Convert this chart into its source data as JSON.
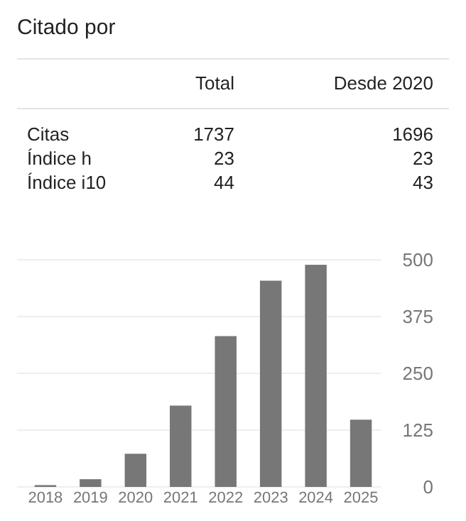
{
  "chart_data": [
    {
      "type": "other",
      "title": "Citado por",
      "categories": [
        "Total",
        "Desde 2020"
      ],
      "y_categories": [
        "Citas",
        "Índice h",
        "Índice i10"
      ],
      "annotations": [
        "1737",
        "1696",
        "23",
        "23",
        "44",
        "43"
      ]
    },
    {
      "type": "bar",
      "categories": [
        "2018",
        "2019",
        "2020",
        "2021",
        "2022",
        "2023",
        "2024",
        "2025"
      ],
      "values": [
        4,
        17,
        73,
        179,
        332,
        454,
        489,
        148
      ],
      "color": "#777777",
      "ylim": [
        0,
        500
      ],
      "yticks": [
        0,
        125,
        250,
        375,
        500
      ],
      "grid": "y"
    }
  ]
}
